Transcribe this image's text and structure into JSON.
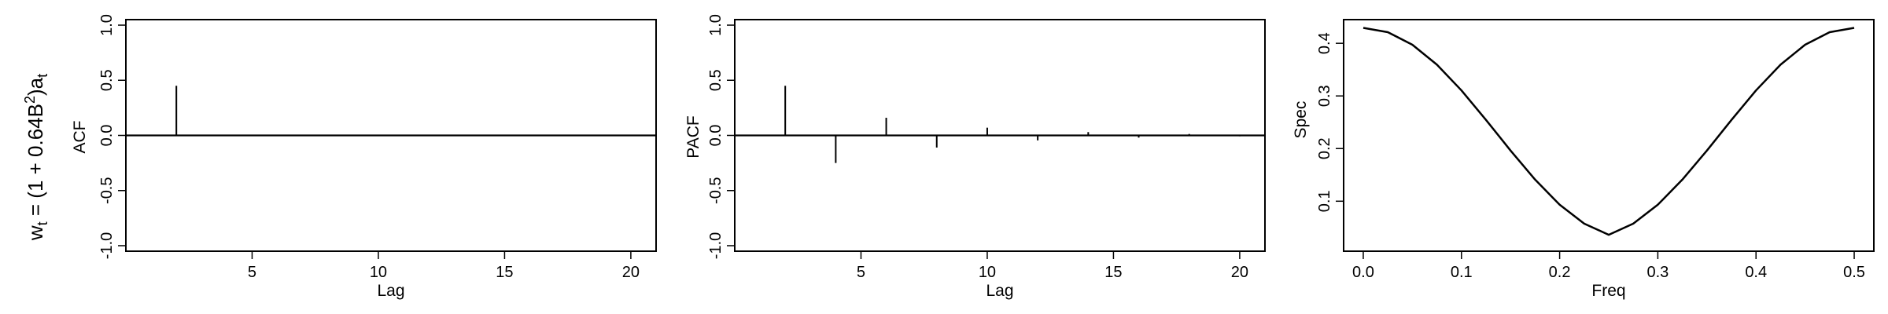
{
  "row_label": {
    "prefix": "w",
    "prefix_sub": "t",
    "mid": " = (1 + 0.64B",
    "sup": "2",
    "close": ")a",
    "suffix_sub": "t"
  },
  "colors": {
    "ink": "#000000",
    "background": "#ffffff"
  },
  "chart_data": [
    {
      "type": "bar",
      "ylabel": "ACF",
      "xlabel": "Lag",
      "xlim": [
        0,
        21
      ],
      "ylim": [
        -1.05,
        1.05
      ],
      "xticks": [
        5,
        10,
        15,
        20
      ],
      "yticks": [
        -1.0,
        -0.5,
        0.0,
        0.5,
        1.0
      ],
      "zero_line": true,
      "lags": [
        1,
        2,
        3,
        4,
        5,
        6,
        7,
        8,
        9,
        10,
        11,
        12,
        13,
        14,
        15,
        16,
        17,
        18,
        19,
        20
      ],
      "values": [
        0,
        0.45,
        0,
        0,
        0,
        0,
        0,
        0,
        0,
        0,
        0,
        0,
        0,
        0,
        0,
        0,
        0,
        0,
        0,
        0
      ]
    },
    {
      "type": "bar",
      "ylabel": "PACF",
      "xlabel": "Lag",
      "xlim": [
        0,
        21
      ],
      "ylim": [
        -1.05,
        1.05
      ],
      "xticks": [
        5,
        10,
        15,
        20
      ],
      "yticks": [
        -1.0,
        -0.5,
        0.0,
        0.5,
        1.0
      ],
      "zero_line": true,
      "lags": [
        1,
        2,
        3,
        4,
        5,
        6,
        7,
        8,
        9,
        10,
        11,
        12,
        13,
        14,
        15,
        16,
        17,
        18,
        19,
        20
      ],
      "values": [
        0,
        0.45,
        0,
        -0.25,
        0,
        0.16,
        0,
        -0.11,
        0,
        0.07,
        0,
        -0.045,
        0,
        0.03,
        0,
        -0.02,
        0,
        0.013,
        0,
        -0.008
      ]
    },
    {
      "type": "line",
      "ylabel": "Spec",
      "xlabel": "Freq",
      "xlim": [
        -0.02,
        0.52
      ],
      "ylim": [
        0.005,
        0.445
      ],
      "xticks": [
        0.0,
        0.1,
        0.2,
        0.3,
        0.4,
        0.5
      ],
      "yticks": [
        0.1,
        0.2,
        0.3,
        0.4
      ],
      "x": [
        0.0,
        0.025,
        0.05,
        0.075,
        0.1,
        0.125,
        0.15,
        0.175,
        0.2,
        0.225,
        0.25,
        0.275,
        0.3,
        0.325,
        0.35,
        0.375,
        0.4,
        0.425,
        0.45,
        0.475,
        0.5
      ],
      "y": [
        0.4294,
        0.4212,
        0.3973,
        0.3594,
        0.3104,
        0.2544,
        0.1962,
        0.141,
        0.0933,
        0.0574,
        0.0361,
        0.0574,
        0.0933,
        0.141,
        0.1962,
        0.2544,
        0.3104,
        0.3594,
        0.3973,
        0.4212,
        0.4294
      ]
    }
  ]
}
